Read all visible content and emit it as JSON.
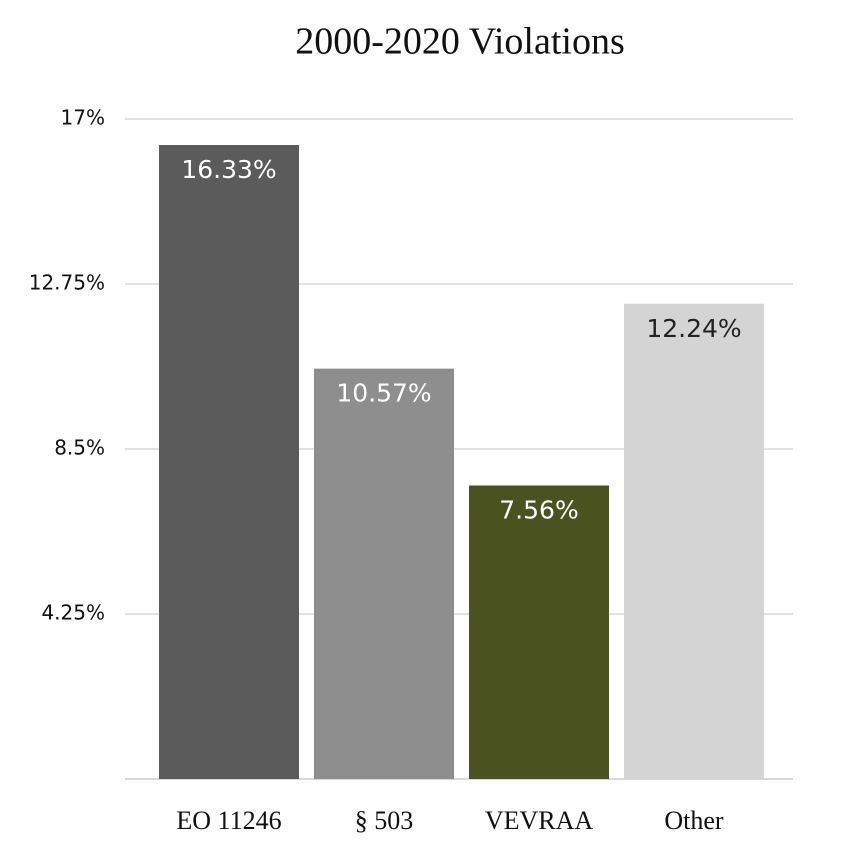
{
  "chart_data": {
    "type": "bar",
    "title": "2000-2020 Violations",
    "categories": [
      "EO 11246",
      "§ 503",
      "VEVRAA",
      "Other"
    ],
    "values": [
      16.33,
      10.57,
      7.56,
      12.24
    ],
    "value_labels": [
      "16.33%",
      "10.57%",
      "7.56%",
      "12.24%"
    ],
    "colors": [
      "#5b5b5b",
      "#8e8e8e",
      "#4a5320",
      "#d4d4d4"
    ],
    "ylim": [
      0,
      17
    ],
    "yticks": [
      {
        "value": 4.25,
        "label": "4.25%"
      },
      {
        "value": 8.5,
        "label": "8.5%"
      },
      {
        "value": 12.75,
        "label": "12.75%"
      },
      {
        "value": 17,
        "label": "17%"
      }
    ],
    "grid": true
  }
}
